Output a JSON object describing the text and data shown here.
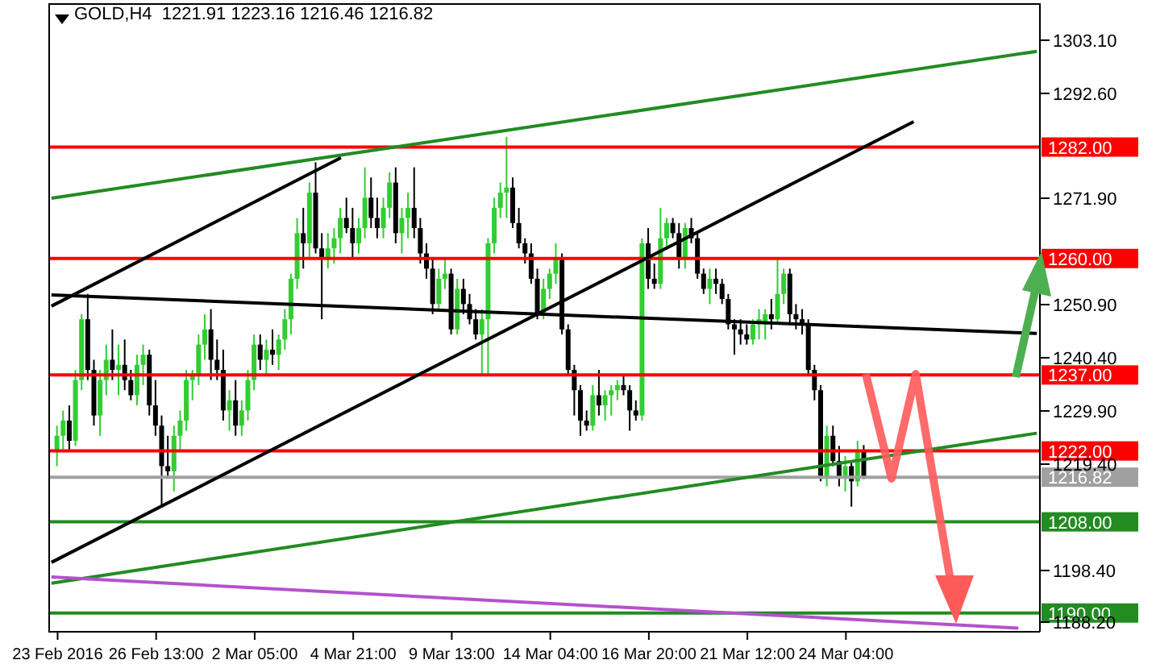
{
  "chart_data": {
    "type": "candlestick",
    "title": "GOLD,H4  1221.91 1223.16 1216.46 1216.82",
    "categories": [
      null,
      "23 Feb 2016",
      null,
      null,
      null,
      null,
      null,
      null,
      null,
      null,
      null,
      null,
      null,
      null,
      null,
      null,
      null,
      "26 Feb 13:00",
      null,
      null,
      null,
      null,
      null,
      null,
      null,
      null,
      null,
      null,
      null,
      null,
      null,
      null,
      null,
      "2 Mar 05:00",
      null,
      null,
      null,
      null,
      null,
      null,
      null,
      null,
      null,
      null,
      null,
      null,
      null,
      null,
      null,
      "4 Mar 21:00",
      null,
      null,
      null,
      null,
      null,
      null,
      null,
      null,
      null,
      null,
      null,
      null,
      null,
      null,
      null,
      "9 Mar 13:00",
      null,
      null,
      null,
      null,
      null,
      null,
      null,
      null,
      null,
      null,
      null,
      null,
      null,
      null,
      null,
      "14 Mar 04:00",
      null,
      null,
      null,
      null,
      null,
      null,
      null,
      null,
      null,
      null,
      null,
      null,
      null,
      null,
      null,
      "16 Mar 20:00",
      null,
      null,
      null,
      null,
      null,
      null,
      null,
      null,
      null,
      null,
      null,
      null,
      null,
      null,
      null,
      "21 Mar 12:00",
      null,
      null,
      null,
      null,
      null,
      null,
      null,
      null,
      null,
      null,
      null,
      null,
      null,
      null,
      null,
      "24 Mar 04:00",
      null,
      null,
      null,
      null,
      null,
      null,
      null,
      null,
      null,
      null,
      null,
      null,
      null,
      null,
      null,
      null,
      null,
      null,
      null,
      null,
      null,
      null,
      null,
      null,
      null,
      null,
      null,
      null,
      null,
      null,
      null
    ],
    "ylim": [
      1186.3,
      1310.4
    ],
    "yticks": [
      {
        "value": 1303.1,
        "label": "1303.10"
      },
      {
        "value": 1292.6,
        "label": "1292.60"
      },
      {
        "value": 1271.9,
        "label": "1271.90"
      },
      {
        "value": 1250.9,
        "label": "1250.90"
      },
      {
        "value": 1240.4,
        "label": "1240.40"
      },
      {
        "value": 1229.9,
        "label": "1229.90"
      },
      {
        "value": 1219.4,
        "label": "1219.40"
      },
      {
        "value": 1198.4,
        "label": "1198.40"
      },
      {
        "value": 1188.2,
        "label": "1188.20"
      }
    ],
    "ref_lines": [
      {
        "axis": "y",
        "value": 1282,
        "label": "1282.00",
        "color": "#ff0000"
      },
      {
        "axis": "y",
        "value": 1260,
        "label": "1260.00",
        "color": "#ff0000"
      },
      {
        "axis": "y",
        "value": 1237,
        "label": "1237.00",
        "color": "#ff0000"
      },
      {
        "axis": "y",
        "value": 1222,
        "label": "1222.00",
        "color": "#ff0000"
      },
      {
        "axis": "y",
        "value": 1216.82,
        "label": "1216.82",
        "color": "#a0a0a0"
      },
      {
        "axis": "y",
        "value": 1208,
        "label": "1208.00",
        "color": "#228b22"
      },
      {
        "axis": "y",
        "value": 1190,
        "label": "1190.00",
        "color": "#228b22"
      }
    ],
    "series": [
      {
        "ohlc": [
          null,
          [
            1222,
            1227,
            1219,
            1225
          ],
          [
            1225,
            1230,
            1222,
            1228
          ],
          [
            1228,
            1231,
            1222,
            1224
          ],
          [
            1224,
            1238,
            1223,
            1236
          ],
          [
            1236,
            1249,
            1234,
            1248
          ],
          [
            1248,
            1253,
            1236,
            1238
          ],
          [
            1238,
            1240,
            1227,
            1229
          ],
          [
            1229,
            1238,
            1225,
            1236
          ],
          [
            1236,
            1243,
            1233,
            1240
          ],
          [
            1240,
            1246,
            1236,
            1238
          ],
          [
            1238,
            1243,
            1233,
            1239
          ],
          [
            1239,
            1244,
            1234,
            1236
          ],
          [
            1236,
            1238,
            1232,
            1233
          ],
          [
            1233,
            1241,
            1231,
            1239
          ],
          [
            1239,
            1243,
            1235,
            1241
          ],
          [
            1241,
            1242,
            1229,
            1231
          ],
          [
            1231,
            1236,
            1225,
            1227
          ],
          [
            1227,
            1229,
            1211,
            1219
          ],
          [
            1219,
            1225,
            1217,
            1218
          ],
          [
            1218,
            1227,
            1214,
            1225
          ],
          [
            1225,
            1230,
            1222,
            1228
          ],
          [
            1228,
            1238,
            1226,
            1236
          ],
          [
            1236,
            1238,
            1232,
            1237
          ],
          [
            1237,
            1245,
            1235,
            1243
          ],
          [
            1243,
            1249,
            1240,
            1246
          ],
          [
            1246,
            1250,
            1236,
            1240
          ],
          [
            1240,
            1244,
            1236,
            1238
          ],
          [
            1238,
            1242,
            1228,
            1230
          ],
          [
            1230,
            1234,
            1226,
            1232
          ],
          [
            1232,
            1236,
            1225,
            1227
          ],
          [
            1227,
            1232,
            1225,
            1230
          ],
          [
            1230,
            1238,
            1228,
            1236
          ],
          [
            1236,
            1245,
            1234,
            1243
          ],
          [
            1243,
            1245,
            1238,
            1240
          ],
          [
            1240,
            1244,
            1237,
            1242
          ],
          [
            1242,
            1246,
            1239,
            1241
          ],
          [
            1241,
            1245,
            1238,
            1244
          ],
          [
            1244,
            1250,
            1242,
            1248
          ],
          [
            1248,
            1257,
            1245,
            1256
          ],
          [
            1256,
            1268,
            1254,
            1265
          ],
          [
            1265,
            1270,
            1258,
            1263
          ],
          [
            1263,
            1275,
            1260,
            1273
          ],
          [
            1273,
            1279,
            1261,
            1262
          ],
          [
            1262,
            1265,
            1248,
            1260
          ],
          [
            1260,
            1265,
            1258,
            1262
          ],
          [
            1262,
            1266,
            1259,
            1264
          ],
          [
            1264,
            1270,
            1261,
            1268
          ],
          [
            1268,
            1272,
            1265,
            1266
          ],
          [
            1266,
            1270,
            1260,
            1263
          ],
          [
            1263,
            1268,
            1261,
            1266
          ],
          [
            1266,
            1278,
            1264,
            1272
          ],
          [
            1272,
            1276,
            1266,
            1268
          ],
          [
            1268,
            1272,
            1264,
            1266
          ],
          [
            1266,
            1272,
            1264,
            1270
          ],
          [
            1270,
            1277,
            1268,
            1275
          ],
          [
            1275,
            1278,
            1263,
            1265
          ],
          [
            1265,
            1270,
            1261,
            1268
          ],
          [
            1268,
            1273,
            1264,
            1270
          ],
          [
            1270,
            1278,
            1264,
            1266
          ],
          [
            1266,
            1268,
            1259,
            1261
          ],
          [
            1261,
            1263,
            1256,
            1258
          ],
          [
            1258,
            1260,
            1249,
            1251
          ],
          [
            1251,
            1258,
            1250,
            1256
          ],
          [
            1256,
            1260,
            1254,
            1257
          ],
          [
            1257,
            1258,
            1245,
            1246
          ],
          [
            1246,
            1256,
            1245,
            1254
          ],
          [
            1254,
            1256,
            1249,
            1251
          ],
          [
            1251,
            1253,
            1247,
            1248
          ],
          [
            1248,
            1250,
            1244,
            1245
          ],
          [
            1245,
            1250,
            1237,
            1248
          ],
          [
            1248,
            1264,
            1237,
            1263
          ],
          [
            1263,
            1272,
            1261,
            1270
          ],
          [
            1270,
            1275,
            1268,
            1273
          ],
          [
            1273,
            1284,
            1268,
            1274
          ],
          [
            1274,
            1276,
            1266,
            1267
          ],
          [
            1267,
            1270,
            1262,
            1263
          ],
          [
            1263,
            1264,
            1259,
            1261
          ],
          [
            1261,
            1263,
            1255,
            1256
          ],
          [
            1256,
            1258,
            1248,
            1249
          ],
          [
            1249,
            1256,
            1248,
            1254
          ],
          [
            1254,
            1258,
            1252,
            1257
          ],
          [
            1257,
            1263,
            1255,
            1260
          ],
          [
            1260,
            1261,
            1245,
            1246
          ],
          [
            1246,
            1247,
            1237,
            1238
          ],
          [
            1238,
            1239,
            1229,
            1234
          ],
          [
            1234,
            1235,
            1225,
            1228
          ],
          [
            1228,
            1230,
            1226,
            1227
          ],
          [
            1227,
            1235,
            1226,
            1233
          ],
          [
            1233,
            1238,
            1229,
            1231
          ],
          [
            1231,
            1234,
            1228,
            1233
          ],
          [
            1233,
            1235,
            1229,
            1234
          ],
          [
            1234,
            1236,
            1232,
            1235
          ],
          [
            1235,
            1237,
            1233,
            1234
          ],
          [
            1234,
            1235,
            1226,
            1230
          ],
          [
            1230,
            1232,
            1228,
            1229
          ],
          [
            1229,
            1264,
            1228,
            1263
          ],
          [
            1263,
            1266,
            1254,
            1256
          ],
          [
            1256,
            1259,
            1254,
            1255
          ],
          [
            1255,
            1270,
            1254,
            1264
          ],
          [
            1264,
            1268,
            1262,
            1267
          ],
          [
            1267,
            1268,
            1264,
            1265
          ],
          [
            1265,
            1267,
            1258,
            1260
          ],
          [
            1260,
            1267,
            1258,
            1266
          ],
          [
            1266,
            1268,
            1263,
            1264
          ],
          [
            1264,
            1265,
            1256,
            1257
          ],
          [
            1257,
            1258,
            1253,
            1254
          ],
          [
            1254,
            1258,
            1251,
            1256
          ],
          [
            1256,
            1258,
            1253,
            1255
          ],
          [
            1255,
            1256,
            1251,
            1252
          ],
          [
            1252,
            1253,
            1246,
            1247
          ],
          [
            1247,
            1248,
            1241,
            1246
          ],
          [
            1246,
            1248,
            1243,
            1245
          ],
          [
            1245,
            1247,
            1243,
            1244
          ],
          [
            1244,
            1248,
            1243,
            1247
          ],
          [
            1247,
            1250,
            1244,
            1248
          ],
          [
            1247,
            1250,
            1244,
            1249
          ],
          [
            1249,
            1252,
            1246,
            1248
          ],
          [
            1248,
            1260,
            1247,
            1253
          ],
          [
            1253,
            1258,
            1251,
            1257
          ],
          [
            1257,
            1258,
            1247,
            1249
          ],
          [
            1249,
            1251,
            1246,
            1248
          ],
          [
            1248,
            1250,
            1245,
            1247
          ],
          [
            1247,
            1248,
            1237,
            1238
          ],
          [
            1238,
            1239,
            1232,
            1234
          ],
          [
            1234,
            1235,
            1216,
            1217
          ],
          [
            1217,
            1227,
            1215,
            1225
          ],
          [
            1225,
            1227,
            1219,
            1220
          ],
          [
            1220,
            1223,
            1215,
            1217
          ],
          [
            1217,
            1221,
            1214,
            1219
          ],
          [
            1219,
            1220,
            1211,
            1216
          ],
          [
            1216,
            1224,
            1215,
            1222
          ],
          [
            1221.91,
            1223.16,
            1216.46,
            1216.82
          ],
          null,
          null,
          null,
          null,
          null,
          null,
          null,
          null,
          null,
          null,
          null,
          null,
          null,
          null,
          null,
          null,
          null,
          null,
          null,
          null,
          null,
          null,
          null,
          null,
          null,
          null,
          null,
          null
        ],
        "colors": [
          null,
          "#32cd32",
          "#32cd32",
          "#000000",
          "#32cd32",
          "#32cd32",
          "#000000",
          "#000000",
          "#32cd32",
          "#32cd32",
          "#000000",
          "#32cd32",
          "#000000",
          "#000000",
          "#32cd32",
          "#32cd32",
          "#000000",
          "#000000",
          "#000000",
          "#000000",
          "#32cd32",
          "#32cd32",
          "#32cd32",
          "#32cd32",
          "#32cd32",
          "#32cd32",
          "#000000",
          "#000000",
          "#000000",
          "#32cd32",
          "#000000",
          "#32cd32",
          "#32cd32",
          "#32cd32",
          "#000000",
          "#32cd32",
          "#000000",
          "#32cd32",
          "#32cd32",
          "#32cd32",
          "#32cd32",
          "#000000",
          "#32cd32",
          "#000000",
          "#000000",
          "#32cd32",
          "#32cd32",
          "#32cd32",
          "#000000",
          "#000000",
          "#32cd32",
          "#32cd32",
          "#000000",
          "#000000",
          "#32cd32",
          "#32cd32",
          "#000000",
          "#32cd32",
          "#32cd32",
          "#000000",
          "#000000",
          "#000000",
          "#000000",
          "#32cd32",
          "#32cd32",
          "#000000",
          "#32cd32",
          "#000000",
          "#000000",
          "#000000",
          "#32cd32",
          "#32cd32",
          "#32cd32",
          "#32cd32",
          "#32cd32",
          "#000000",
          "#000000",
          "#000000",
          "#000000",
          "#000000",
          "#32cd32",
          "#32cd32",
          "#32cd32",
          "#000000",
          "#000000",
          "#000000",
          "#000000",
          "#000000",
          "#32cd32",
          "#000000",
          "#32cd32",
          "#32cd32",
          "#32cd32",
          "#000000",
          "#000000",
          "#000000",
          "#32cd32",
          "#000000",
          "#000000",
          "#32cd32",
          "#32cd32",
          "#000000",
          "#000000",
          "#32cd32",
          "#000000",
          "#000000",
          "#000000",
          "#32cd32",
          "#000000",
          "#000000",
          "#000000",
          "#000000",
          "#000000",
          "#000000",
          "#32cd32",
          "#32cd32",
          "#32cd32",
          "#000000",
          "#32cd32",
          "#32cd32",
          "#000000",
          "#000000",
          "#000000",
          "#000000",
          "#000000",
          "#000000",
          "#32cd32",
          "#000000",
          "#000000",
          "#32cd32",
          "#000000",
          "#32cd32",
          "#000000",
          null,
          null,
          null,
          null,
          null,
          null,
          null,
          null,
          null,
          null,
          null,
          null,
          null,
          null,
          null,
          null,
          null,
          null,
          null,
          null,
          null,
          null,
          null,
          null,
          null,
          null,
          null,
          null
        ]
      },
      {
        "type": "line",
        "color": "#228b22",
        "values": [
          1271.9,
          null,
          null,
          null,
          null,
          null,
          null,
          null,
          null,
          null,
          null,
          null,
          null,
          null,
          null,
          null,
          null,
          null,
          null,
          null,
          null,
          null,
          null,
          null,
          null,
          null,
          null,
          null,
          null,
          null,
          null,
          null,
          null,
          null,
          null,
          null,
          null,
          null,
          null,
          null,
          null,
          null,
          null,
          null,
          null,
          null,
          null,
          null,
          null,
          null,
          null,
          null,
          null,
          null,
          null,
          null,
          null,
          null,
          null,
          null,
          null,
          null,
          null,
          null,
          null,
          null,
          null,
          null,
          null,
          null,
          null,
          null,
          null,
          null,
          null,
          null,
          null,
          null,
          null,
          null,
          null,
          null,
          null,
          null,
          null,
          null,
          null,
          null,
          null,
          null,
          null,
          null,
          null,
          null,
          null,
          null,
          null,
          null,
          null,
          null,
          null,
          null,
          null,
          null,
          null,
          null,
          null,
          null,
          null,
          null,
          null,
          null,
          null,
          null,
          null,
          null,
          null,
          null,
          null,
          null,
          null,
          null,
          null,
          null,
          null,
          null,
          null,
          null,
          null,
          null,
          null,
          null,
          null,
          null,
          null,
          null,
          null,
          null,
          null,
          null,
          null,
          null,
          null,
          null,
          null,
          null,
          null,
          null,
          null,
          null,
          null,
          null,
          null,
          null,
          null,
          null,
          null,
          null,
          null,
          null,
          1300.9
        ]
      },
      {
        "type": "line",
        "color": "#228b22",
        "values": [
          1195.9,
          null,
          null,
          null,
          null,
          null,
          null,
          null,
          null,
          null,
          null,
          null,
          null,
          null,
          null,
          null,
          null,
          null,
          null,
          null,
          null,
          null,
          null,
          null,
          null,
          null,
          null,
          null,
          null,
          null,
          null,
          null,
          null,
          null,
          null,
          null,
          null,
          null,
          null,
          null,
          null,
          null,
          null,
          null,
          null,
          null,
          null,
          null,
          null,
          null,
          null,
          null,
          null,
          null,
          null,
          null,
          null,
          null,
          null,
          null,
          null,
          null,
          null,
          null,
          null,
          null,
          null,
          null,
          null,
          null,
          null,
          null,
          null,
          null,
          null,
          null,
          null,
          null,
          null,
          null,
          null,
          null,
          null,
          null,
          null,
          null,
          null,
          null,
          null,
          null,
          null,
          null,
          null,
          null,
          null,
          null,
          null,
          null,
          null,
          null,
          null,
          null,
          null,
          null,
          null,
          null,
          null,
          null,
          null,
          null,
          null,
          null,
          null,
          null,
          null,
          null,
          null,
          null,
          null,
          null,
          null,
          null,
          null,
          null,
          null,
          null,
          null,
          null,
          null,
          null,
          null,
          null,
          null,
          null,
          null,
          null,
          null,
          null,
          null,
          null,
          null,
          null,
          null,
          null,
          null,
          null,
          null,
          null,
          null,
          null,
          null,
          null,
          null,
          null,
          null,
          null,
          null,
          null,
          null,
          null,
          1225.5
        ]
      },
      {
        "type": "line",
        "color": "#000000",
        "values": [
          1252.8,
          null,
          null,
          null,
          null,
          null,
          null,
          null,
          null,
          null,
          null,
          null,
          null,
          null,
          null,
          null,
          null,
          null,
          null,
          null,
          null,
          null,
          null,
          null,
          null,
          null,
          null,
          null,
          null,
          null,
          null,
          null,
          null,
          null,
          null,
          null,
          null,
          null,
          null,
          null,
          null,
          null,
          null,
          null,
          null,
          null,
          null,
          null,
          null,
          null,
          null,
          null,
          null,
          null,
          null,
          null,
          null,
          null,
          null,
          null,
          null,
          null,
          null,
          null,
          null,
          null,
          null,
          null,
          null,
          null,
          null,
          null,
          null,
          null,
          null,
          null,
          null,
          null,
          null,
          null,
          null,
          null,
          null,
          null,
          null,
          null,
          null,
          null,
          null,
          null,
          null,
          null,
          null,
          null,
          null,
          null,
          null,
          null,
          null,
          null,
          null,
          null,
          null,
          null,
          null,
          null,
          null,
          null,
          null,
          null,
          null,
          null,
          null,
          null,
          null,
          null,
          null,
          null,
          null,
          null,
          null,
          null,
          null,
          null,
          null,
          null,
          null,
          null,
          null,
          null,
          null,
          null,
          null,
          null,
          null,
          null,
          null,
          null,
          null,
          null,
          null,
          null,
          null,
          null,
          null,
          null,
          null,
          null,
          null,
          null,
          null,
          null,
          null,
          null,
          null,
          null,
          null,
          null,
          null,
          null,
          1245.2
        ]
      },
      {
        "type": "line",
        "color": "#000000",
        "values": [
          1250.6,
          null,
          null,
          null,
          null,
          null,
          null,
          null,
          null,
          null,
          null,
          null,
          null,
          null,
          null,
          null,
          null,
          null,
          null,
          null,
          null,
          null,
          null,
          null,
          null,
          null,
          null,
          null,
          null,
          null,
          null,
          null,
          null,
          null,
          null,
          null,
          null,
          null,
          null,
          null,
          null,
          null,
          null,
          null,
          null,
          null,
          null,
          1279.9,
          null,
          null,
          null,
          null,
          null,
          null,
          null,
          null,
          null,
          null,
          null,
          null,
          null,
          null,
          null,
          null,
          null,
          null,
          null,
          null,
          null,
          null,
          null,
          null,
          null,
          null,
          null,
          null,
          null,
          null,
          null,
          null,
          null,
          null,
          null,
          null,
          null,
          null,
          null,
          null,
          null,
          null,
          null,
          null,
          null,
          null,
          null,
          null,
          null,
          null,
          null,
          null,
          null,
          null,
          null,
          null,
          null,
          null,
          null,
          null,
          null,
          null,
          null,
          null,
          null,
          null,
          null,
          null,
          null,
          null,
          null,
          null,
          null,
          null,
          null,
          null,
          null,
          null,
          null,
          null,
          null,
          null,
          null,
          null,
          null,
          null,
          null,
          null,
          null,
          null,
          null,
          null,
          null,
          null,
          null,
          null,
          null,
          null,
          null,
          null,
          null,
          null,
          null,
          null,
          null,
          null,
          null,
          null,
          null,
          null,
          null,
          null,
          null
        ]
      },
      {
        "type": "line",
        "color": "#000000",
        "values": [
          1200,
          null,
          null,
          null,
          null,
          null,
          null,
          null,
          null,
          null,
          null,
          null,
          null,
          null,
          null,
          null,
          null,
          null,
          null,
          null,
          null,
          null,
          null,
          null,
          null,
          null,
          null,
          null,
          null,
          null,
          null,
          null,
          null,
          null,
          null,
          null,
          null,
          null,
          null,
          null,
          null,
          null,
          null,
          null,
          null,
          null,
          null,
          null,
          null,
          null,
          null,
          null,
          null,
          null,
          null,
          null,
          null,
          null,
          null,
          null,
          null,
          null,
          null,
          null,
          null,
          null,
          null,
          null,
          null,
          null,
          null,
          null,
          null,
          null,
          null,
          null,
          null,
          null,
          null,
          null,
          null,
          null,
          null,
          null,
          null,
          null,
          null,
          null,
          null,
          null,
          null,
          null,
          null,
          null,
          null,
          null,
          null,
          null,
          null,
          null,
          null,
          null,
          null,
          null,
          null,
          null,
          null,
          null,
          null,
          null,
          null,
          null,
          null,
          null,
          null,
          null,
          null,
          null,
          null,
          null,
          null,
          null,
          null,
          null,
          null,
          null,
          null,
          null,
          null,
          null,
          null,
          null,
          null,
          null,
          null,
          null,
          null,
          null,
          null,
          null,
          1287,
          null,
          null,
          null,
          null,
          null,
          null,
          null,
          null,
          null,
          null,
          null,
          null,
          null,
          null,
          null,
          null,
          null,
          null,
          null,
          null
        ]
      },
      {
        "type": "line",
        "color": "#b452cd",
        "values": [
          1197.1,
          null,
          null,
          null,
          null,
          null,
          null,
          null,
          null,
          null,
          null,
          null,
          null,
          null,
          null,
          null,
          null,
          null,
          null,
          null,
          null,
          null,
          null,
          null,
          null,
          null,
          null,
          null,
          null,
          null,
          null,
          null,
          null,
          null,
          null,
          null,
          null,
          null,
          null,
          null,
          null,
          null,
          null,
          null,
          null,
          null,
          null,
          null,
          null,
          null,
          null,
          null,
          null,
          null,
          null,
          null,
          null,
          null,
          null,
          null,
          null,
          null,
          null,
          null,
          null,
          null,
          null,
          null,
          null,
          null,
          null,
          null,
          null,
          null,
          null,
          null,
          null,
          null,
          null,
          null,
          null,
          null,
          null,
          null,
          null,
          null,
          null,
          null,
          null,
          null,
          null,
          null,
          null,
          null,
          null,
          null,
          null,
          null,
          null,
          null,
          null,
          null,
          null,
          null,
          null,
          null,
          null,
          null,
          null,
          null,
          null,
          null,
          null,
          null,
          null,
          null,
          null,
          null,
          null,
          null,
          null,
          null,
          null,
          null,
          null,
          null,
          null,
          null,
          null,
          null,
          null,
          null,
          null,
          null,
          null,
          null,
          null,
          null,
          null,
          null,
          null,
          null,
          null,
          null,
          null,
          null,
          null,
          null,
          null,
          null,
          null,
          null,
          null,
          null,
          null,
          null,
          null,
          1187,
          null,
          null,
          null
        ]
      }
    ]
  }
}
